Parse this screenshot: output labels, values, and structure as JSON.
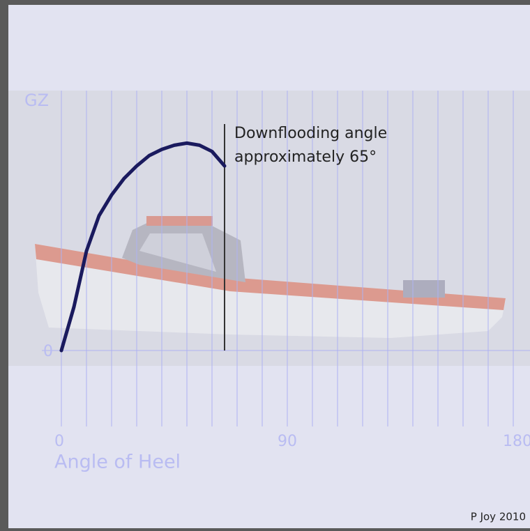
{
  "chart_data": {
    "type": "line",
    "ylabel": "GZ",
    "xlabel": "Angle of Heel",
    "x": [
      0,
      5,
      10,
      15,
      20,
      25,
      30,
      35,
      40,
      45,
      50,
      55,
      60,
      65
    ],
    "series": [
      {
        "color": "#1a1a5e",
        "values": [
          0,
          0.21,
          0.48,
          0.65,
          0.75,
          0.83,
          0.89,
          0.94,
          0.97,
          0.99,
          1.0,
          0.99,
          0.96,
          0.89
        ]
      }
    ],
    "xlim": [
      0,
      180
    ],
    "xticks": [
      0,
      90,
      180
    ],
    "xgrid": [
      0,
      10,
      20,
      30,
      40,
      50,
      60,
      70,
      80,
      90,
      100,
      110,
      120,
      130,
      140,
      150,
      160,
      170,
      180
    ],
    "ylim": [
      0,
      1.25
    ],
    "yticks": [
      0
    ],
    "marker_line": {
      "x": 65,
      "color": "#333333"
    },
    "annotation": [
      "Downflooding angle",
      "approximately 65°"
    ],
    "credit": "P Joy 2010"
  }
}
